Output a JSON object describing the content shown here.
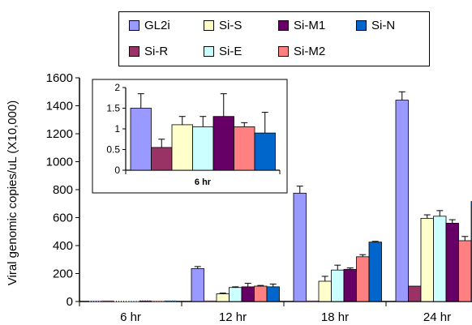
{
  "chart_data": [
    {
      "type": "bar",
      "ylabel": "Viral genomic copies/uL (X10,000)",
      "ylim": [
        0,
        1600
      ],
      "yticks": [
        0,
        200,
        400,
        600,
        800,
        1000,
        1200,
        1400,
        1600
      ],
      "categories": [
        "6 hr",
        "12 hr",
        "18 hr",
        "24 hr"
      ],
      "series": [
        {
          "name": "GL2i",
          "color": "#9999FF",
          "values": [
            1.5,
            235,
            775,
            1440
          ],
          "errors": [
            0,
            15,
            50,
            60
          ]
        },
        {
          "name": "Si-R",
          "color": "#993366",
          "values": [
            0.6,
            5,
            5,
            110
          ],
          "errors": [
            0,
            0,
            0,
            0
          ]
        },
        {
          "name": "Si-S",
          "color": "#FFFFCC",
          "values": [
            1.1,
            55,
            145,
            595
          ],
          "errors": [
            0,
            5,
            35,
            25
          ]
        },
        {
          "name": "Si-E",
          "color": "#CCFFFF",
          "values": [
            1.05,
            100,
            225,
            610
          ],
          "errors": [
            0,
            5,
            35,
            40
          ]
        },
        {
          "name": "Si-M1",
          "color": "#660066",
          "values": [
            1.3,
            105,
            230,
            560
          ],
          "errors": [
            0,
            25,
            10,
            25
          ]
        },
        {
          "name": "Si-M2",
          "color": "#FF8080",
          "values": [
            1.05,
            110,
            320,
            435
          ],
          "errors": [
            0,
            5,
            15,
            30
          ]
        },
        {
          "name": "Si-N",
          "color": "#0066CC",
          "values": [
            0.9,
            105,
            425,
            715
          ],
          "errors": [
            0,
            20,
            5,
            50
          ]
        }
      ],
      "legend_position": "top",
      "grid": false
    },
    {
      "type": "bar",
      "inset": true,
      "xlabel": "6 hr",
      "ylim": [
        0,
        2
      ],
      "yticks": [
        0,
        0.5,
        1,
        1.5,
        2
      ],
      "ytick_labels": [
        "0",
        "0.5",
        "1",
        "1.5",
        "2"
      ],
      "series_values": [
        1.5,
        0.55,
        1.1,
        1.05,
        1.3,
        1.05,
        0.9
      ],
      "series_errors": [
        0.35,
        0.2,
        0.2,
        0.25,
        0.55,
        0.1,
        0.5
      ]
    }
  ]
}
